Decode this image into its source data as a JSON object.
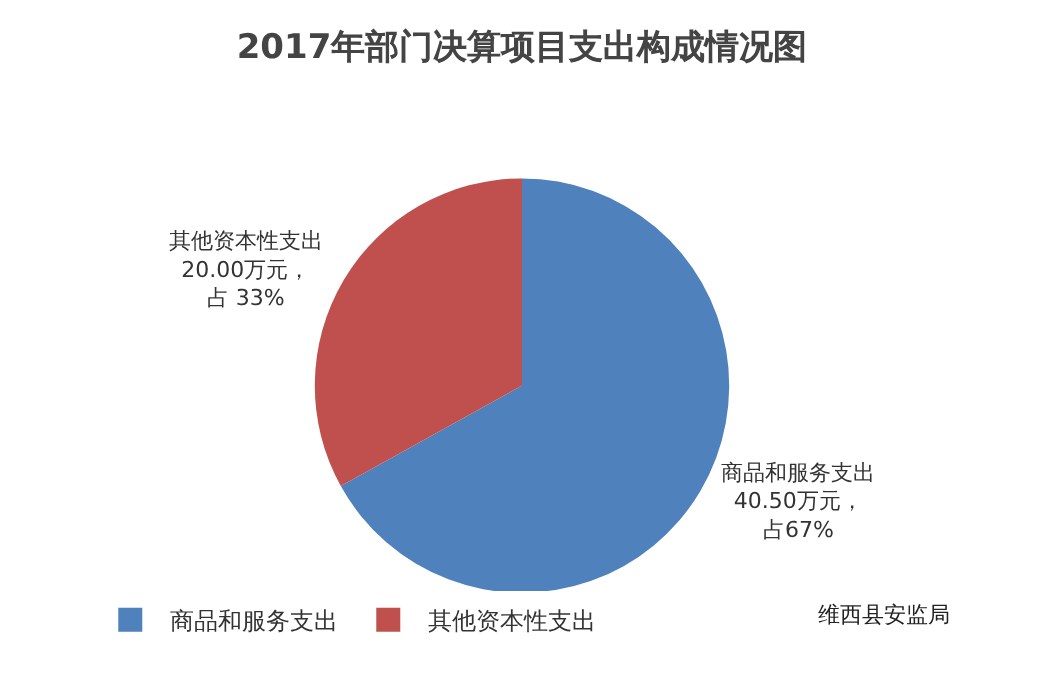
{
  "chart_data": {
    "type": "pie",
    "title": "2017年部门决算项目支出构成情况图",
    "categories": [
      "商品和服务支出",
      "其他资本性支出"
    ],
    "values": [
      40.5,
      20.0
    ],
    "colors": [
      "#4f81bd",
      "#c0504d"
    ],
    "value_labels": [
      "40.50万元，占67%",
      "20.00万元，占 33%"
    ],
    "legend": "bottom",
    "annotations": [
      "维西县安监局"
    ]
  }
}
